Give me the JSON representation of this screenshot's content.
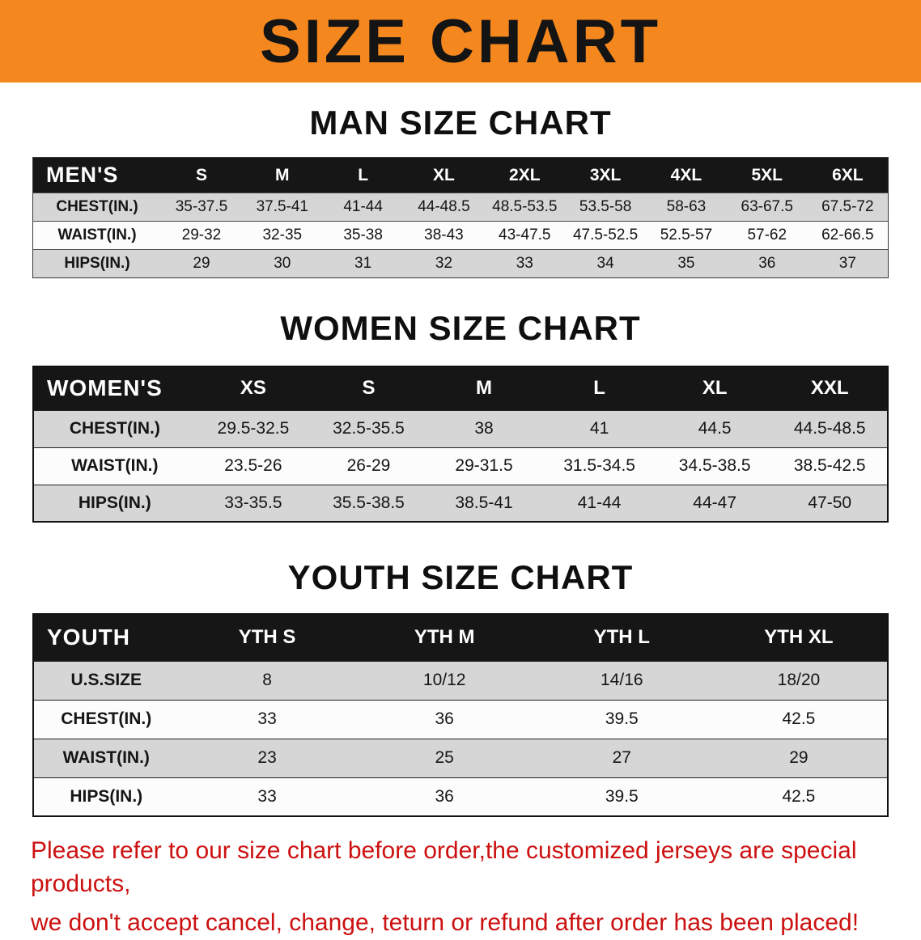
{
  "banner": {
    "title": "SIZE CHART"
  },
  "colors": {
    "banner_bg": "#f5871f",
    "header_bar": "#161616",
    "row_shade": "#d6d6d6",
    "notice_red": "#cc1111"
  },
  "chart_data": [
    {
      "type": "table",
      "name": "men-size-chart",
      "title": "MAN SIZE CHART",
      "columns": [
        "MEN'S",
        "S",
        "M",
        "L",
        "XL",
        "2XL",
        "3XL",
        "4XL",
        "5XL",
        "6XL"
      ],
      "rows": [
        [
          "CHEST(IN.)",
          "35-37.5",
          "37.5-41",
          "41-44",
          "44-48.5",
          "48.5-53.5",
          "53.5-58",
          "58-63",
          "63-67.5",
          "67.5-72"
        ],
        [
          "WAIST(IN.)",
          "29-32",
          "32-35",
          "35-38",
          "38-43",
          "43-47.5",
          "47.5-52.5",
          "52.5-57",
          "57-62",
          "62-66.5"
        ],
        [
          "HIPS(IN.)",
          "29",
          "30",
          "31",
          "32",
          "33",
          "34",
          "35",
          "36",
          "37"
        ]
      ]
    },
    {
      "type": "table",
      "name": "women-size-chart",
      "title": "WOMEN SIZE CHART",
      "columns": [
        "WOMEN'S",
        "XS",
        "S",
        "M",
        "L",
        "XL",
        "XXL"
      ],
      "rows": [
        [
          "CHEST(IN.)",
          "29.5-32.5",
          "32.5-35.5",
          "38",
          "41",
          "44.5",
          "44.5-48.5"
        ],
        [
          "WAIST(IN.)",
          "23.5-26",
          "26-29",
          "29-31.5",
          "31.5-34.5",
          "34.5-38.5",
          "38.5-42.5"
        ],
        [
          "HIPS(IN.)",
          "33-35.5",
          "35.5-38.5",
          "38.5-41",
          "41-44",
          "44-47",
          "47-50"
        ]
      ]
    },
    {
      "type": "table",
      "name": "youth-size-chart",
      "title": "YOUTH SIZE CHART",
      "columns": [
        "YOUTH",
        "YTH S",
        "YTH M",
        "YTH L",
        "YTH XL"
      ],
      "rows": [
        [
          "U.S.SIZE",
          "8",
          "10/12",
          "14/16",
          "18/20"
        ],
        [
          "CHEST(IN.)",
          "33",
          "36",
          "39.5",
          "42.5"
        ],
        [
          "WAIST(IN.)",
          "23",
          "25",
          "27",
          "29"
        ],
        [
          "HIPS(IN.)",
          "33",
          "36",
          "39.5",
          "42.5"
        ]
      ]
    }
  ],
  "footer": {
    "line1": "Please refer to our size chart before order,the customized jerseys are special products,",
    "line2": "we don't accept cancel, change, teturn or refund after order has been placed!"
  }
}
